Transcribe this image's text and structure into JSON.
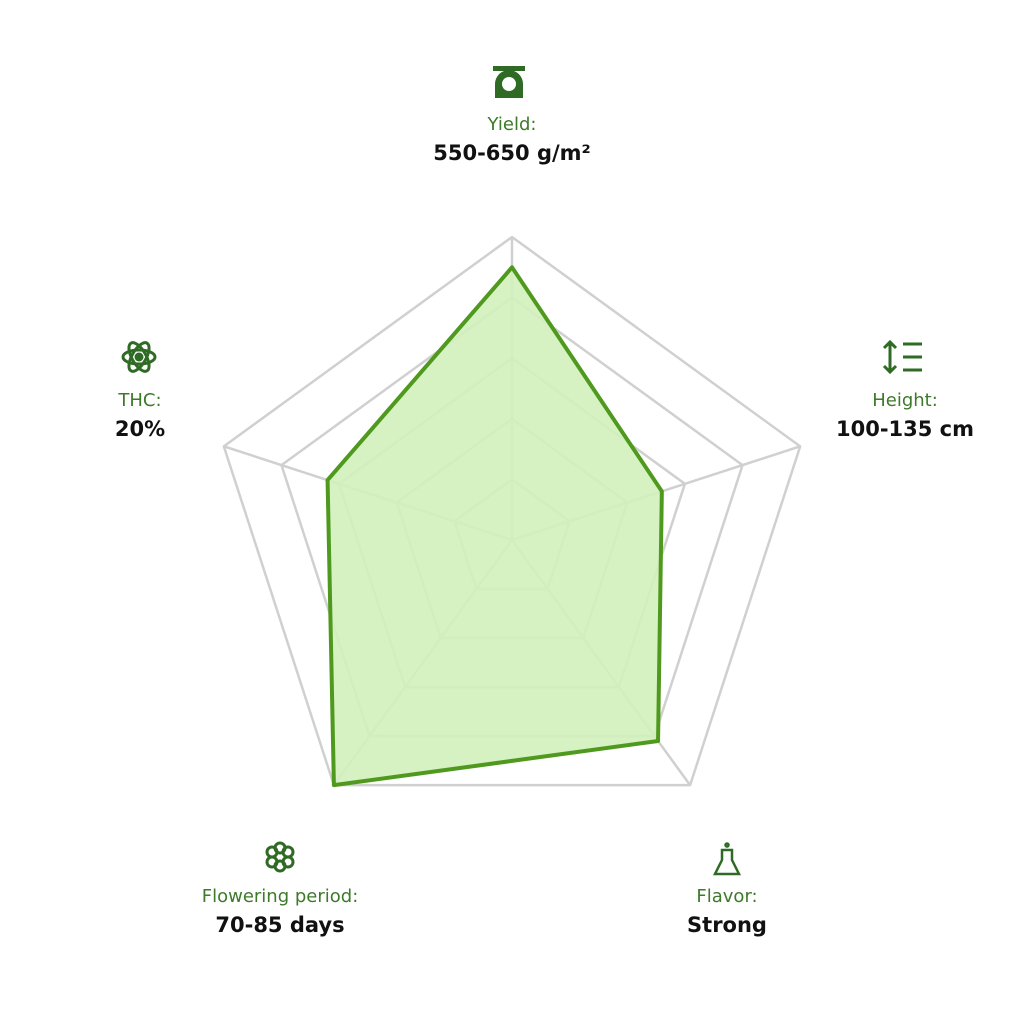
{
  "chart_data": {
    "type": "radar",
    "categories": [
      "Yield:",
      "Height:",
      "Flavor:",
      "Flowering period:",
      "THC:"
    ],
    "value_texts": [
      "550-650 g/m²",
      "100-135 cm",
      "Strong",
      "70-85 days",
      "20%"
    ],
    "values": [
      4.5,
      2.6,
      4.1,
      5,
      3.2
    ],
    "ylim": [
      0,
      5
    ],
    "yticks": [
      1,
      2,
      3,
      4,
      5
    ],
    "color": "#4f9a1e",
    "fill": "#d2f0bb",
    "grid": true
  }
}
